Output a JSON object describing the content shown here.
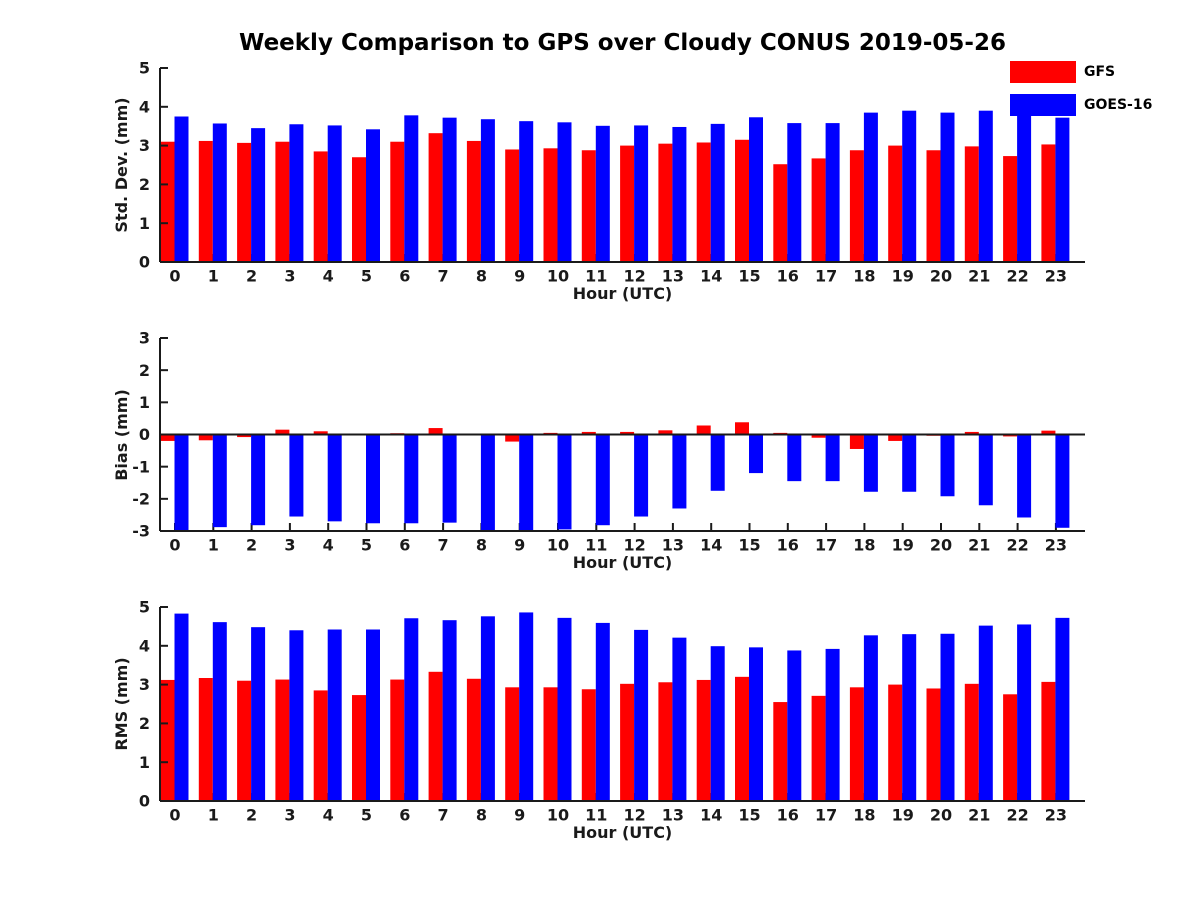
{
  "title": "Weekly Comparison to GPS over Cloudy CONUS 2019-05-26",
  "legend": {
    "items": [
      {
        "label": "GFS",
        "color": "#ff0000"
      },
      {
        "label": "GOES-16",
        "color": "#0000ff"
      }
    ]
  },
  "chart_data": [
    {
      "type": "bar",
      "ylabel": "Std. Dev. (mm)",
      "xlabel": "Hour (UTC)",
      "ylim": [
        0,
        5
      ],
      "yticks": [
        0,
        1,
        2,
        3,
        4,
        5
      ],
      "categories": [
        "0",
        "1",
        "2",
        "3",
        "4",
        "5",
        "6",
        "7",
        "8",
        "9",
        "10",
        "11",
        "12",
        "13",
        "14",
        "15",
        "16",
        "17",
        "18",
        "19",
        "20",
        "21",
        "22",
        "23"
      ],
      "series": [
        {
          "name": "GFS",
          "color": "#ff0000",
          "values": [
            3.1,
            3.12,
            3.07,
            3.1,
            2.85,
            2.7,
            3.1,
            3.32,
            3.12,
            2.9,
            2.93,
            2.88,
            3.0,
            3.05,
            3.08,
            3.15,
            2.52,
            2.67,
            2.88,
            3.0,
            2.88,
            2.98,
            2.73,
            3.03
          ]
        },
        {
          "name": "GOES-16",
          "color": "#0000ff",
          "values": [
            3.75,
            3.57,
            3.45,
            3.55,
            3.52,
            3.42,
            3.78,
            3.72,
            3.68,
            3.63,
            3.6,
            3.51,
            3.52,
            3.48,
            3.56,
            3.73,
            3.58,
            3.58,
            3.85,
            3.9,
            3.85,
            3.9,
            3.77,
            3.72
          ]
        }
      ]
    },
    {
      "type": "bar",
      "ylabel": "Bias (mm)",
      "xlabel": "Hour (UTC)",
      "ylim": [
        -3,
        3
      ],
      "yticks": [
        -3,
        -2,
        -1,
        0,
        1,
        2,
        3
      ],
      "categories": [
        "0",
        "1",
        "2",
        "3",
        "4",
        "5",
        "6",
        "7",
        "8",
        "9",
        "10",
        "11",
        "12",
        "13",
        "14",
        "15",
        "16",
        "17",
        "18",
        "19",
        "20",
        "21",
        "22",
        "23"
      ],
      "series": [
        {
          "name": "GFS",
          "color": "#ff0000",
          "values": [
            -0.2,
            -0.18,
            -0.08,
            0.15,
            0.1,
            0.02,
            0.04,
            0.2,
            0.02,
            -0.22,
            0.05,
            0.08,
            0.08,
            0.13,
            0.28,
            0.38,
            0.05,
            -0.1,
            -0.45,
            -0.2,
            -0.04,
            0.08,
            -0.06,
            0.12
          ]
        },
        {
          "name": "GOES-16",
          "color": "#0000ff",
          "values": [
            -3.0,
            -2.88,
            -2.82,
            -2.55,
            -2.7,
            -2.76,
            -2.76,
            -2.74,
            -3.0,
            -3.0,
            -2.95,
            -2.82,
            -2.55,
            -2.3,
            -1.75,
            -1.2,
            -1.45,
            -1.45,
            -1.78,
            -1.78,
            -1.92,
            -2.2,
            -2.58,
            -2.9
          ]
        }
      ]
    },
    {
      "type": "bar",
      "ylabel": "RMS (mm)",
      "xlabel": "Hour (UTC)",
      "ylim": [
        0,
        5
      ],
      "yticks": [
        0,
        1,
        2,
        3,
        4,
        5
      ],
      "categories": [
        "0",
        "1",
        "2",
        "3",
        "4",
        "5",
        "6",
        "7",
        "8",
        "9",
        "10",
        "11",
        "12",
        "13",
        "14",
        "15",
        "16",
        "17",
        "18",
        "19",
        "20",
        "21",
        "22",
        "23"
      ],
      "series": [
        {
          "name": "GFS",
          "color": "#ff0000",
          "values": [
            3.12,
            3.17,
            3.1,
            3.13,
            2.85,
            2.73,
            3.13,
            3.33,
            3.15,
            2.93,
            2.93,
            2.88,
            3.02,
            3.06,
            3.12,
            3.2,
            2.55,
            2.71,
            2.93,
            3.0,
            2.9,
            3.02,
            2.75,
            3.07
          ]
        },
        {
          "name": "GOES-16",
          "color": "#0000ff",
          "values": [
            4.83,
            4.61,
            4.48,
            4.4,
            4.42,
            4.42,
            4.71,
            4.66,
            4.76,
            4.86,
            4.72,
            4.59,
            4.41,
            4.21,
            3.99,
            3.96,
            3.88,
            3.92,
            4.27,
            4.3,
            4.31,
            4.52,
            4.55,
            4.72
          ]
        }
      ]
    }
  ]
}
